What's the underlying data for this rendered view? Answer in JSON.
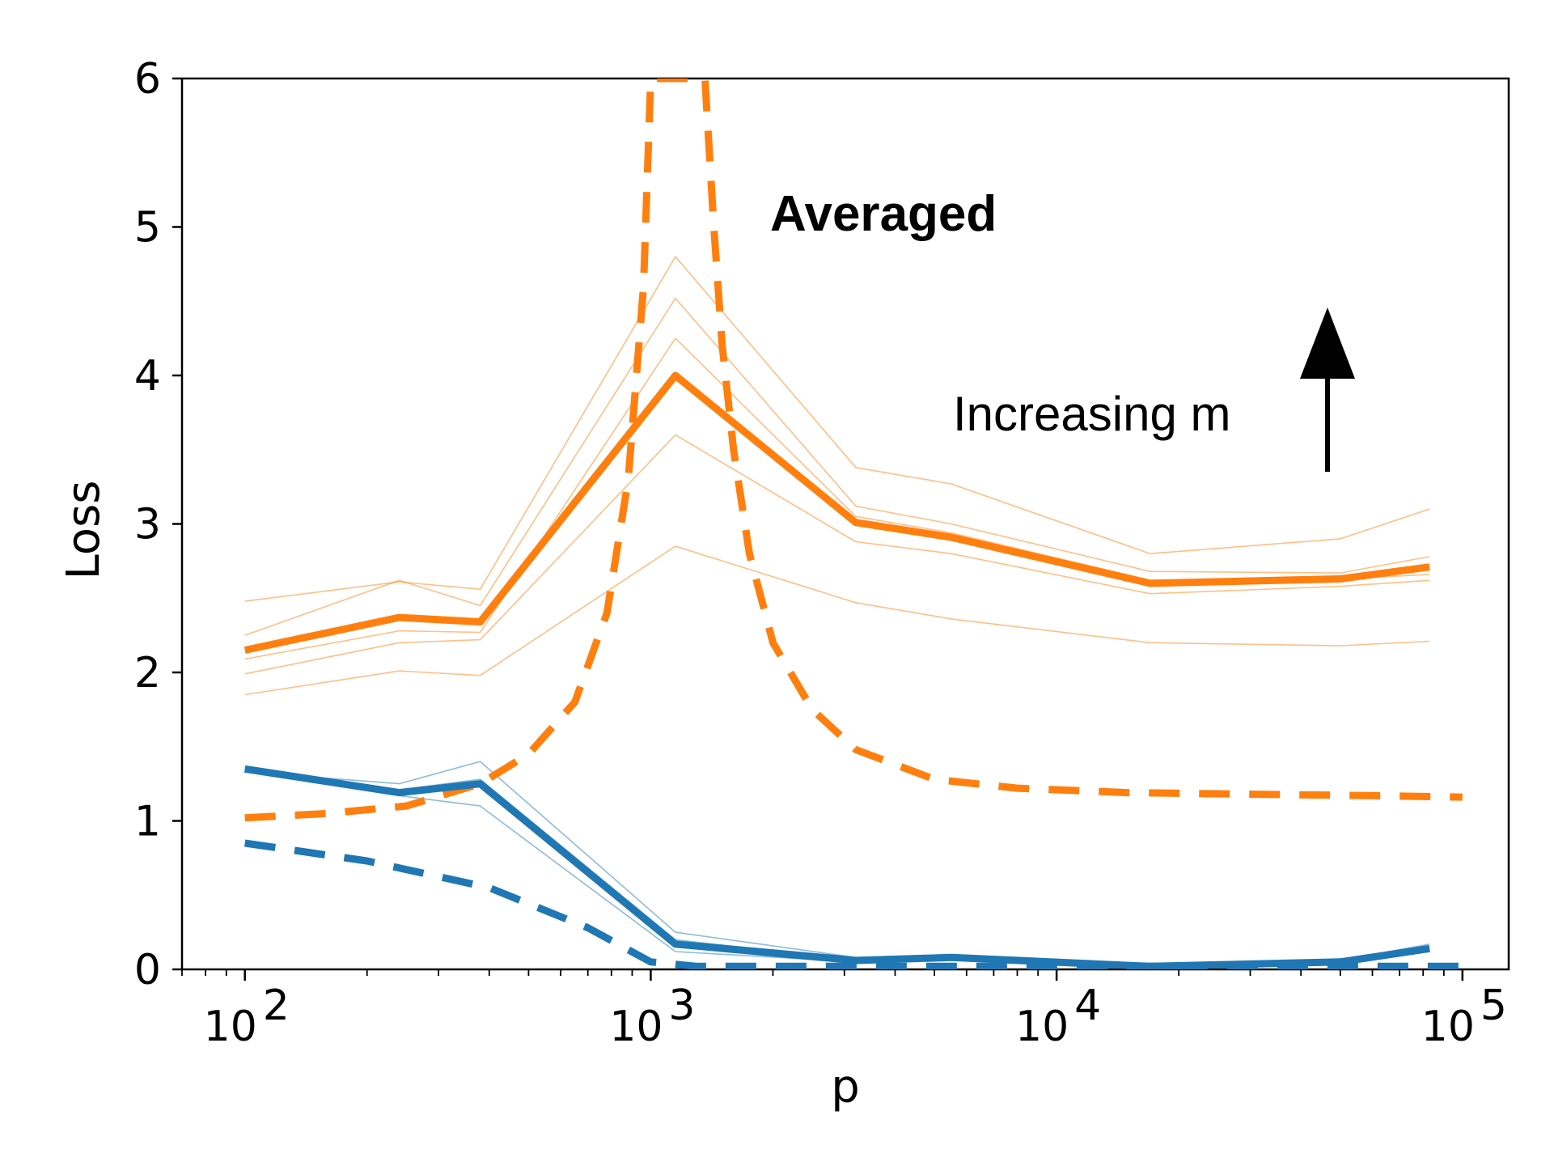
{
  "chart_data": {
    "type": "line",
    "title": "Averaged",
    "xlabel": "p",
    "ylabel": "Loss",
    "xscale": "log",
    "xlim": [
      70,
      130000
    ],
    "ylim": [
      0,
      6
    ],
    "grid": false,
    "x_ticks": [
      {
        "value": 100,
        "base": "10",
        "exp": "2"
      },
      {
        "value": 1000,
        "base": "10",
        "exp": "3"
      },
      {
        "value": 10000,
        "base": "10",
        "exp": "4"
      },
      {
        "value": 100000,
        "base": "10",
        "exp": "5"
      }
    ],
    "y_ticks": [
      0,
      1,
      2,
      3,
      4,
      5,
      6
    ],
    "annotation": {
      "text": "Increasing m",
      "arrow": "up"
    },
    "series": [
      {
        "name": "orange-thin-1",
        "color": "#ff7f0e",
        "style": "thin",
        "x": [
          100,
          240,
          380,
          1150,
          3200,
          5500,
          17000,
          50000,
          83000
        ],
        "y": [
          1.85,
          2.01,
          1.98,
          2.85,
          2.47,
          2.36,
          2.2,
          2.18,
          2.21
        ]
      },
      {
        "name": "orange-thin-2",
        "color": "#ff7f0e",
        "style": "thin",
        "x": [
          100,
          240,
          380,
          1150,
          3200,
          5500,
          17000,
          50000,
          83000
        ],
        "y": [
          1.99,
          2.2,
          2.22,
          3.6,
          2.88,
          2.8,
          2.53,
          2.58,
          2.62
        ]
      },
      {
        "name": "orange-thin-3",
        "color": "#ff7f0e",
        "style": "thin",
        "x": [
          100,
          240,
          380,
          1150,
          3200,
          5500,
          17000,
          50000,
          83000
        ],
        "y": [
          2.09,
          2.28,
          2.27,
          4.25,
          3.05,
          2.94,
          2.62,
          2.63,
          2.66
        ]
      },
      {
        "name": "orange-thin-4",
        "color": "#ff7f0e",
        "style": "thin",
        "x": [
          100,
          240,
          380,
          1150,
          3200,
          5500,
          17000,
          50000,
          83000
        ],
        "y": [
          2.25,
          2.62,
          2.45,
          4.52,
          3.12,
          3.0,
          2.68,
          2.67,
          2.78
        ]
      },
      {
        "name": "orange-thin-5",
        "color": "#ff7f0e",
        "style": "thin",
        "x": [
          100,
          240,
          380,
          1150,
          3200,
          5500,
          17000,
          50000,
          83000
        ],
        "y": [
          2.48,
          2.61,
          2.56,
          4.8,
          3.38,
          3.27,
          2.8,
          2.9,
          3.1
        ]
      },
      {
        "name": "orange-averaged",
        "color": "#ff7f0e",
        "style": "solid",
        "x": [
          100,
          240,
          380,
          1150,
          3200,
          5500,
          17000,
          50000,
          83000
        ],
        "y": [
          2.15,
          2.37,
          2.34,
          4.0,
          3.01,
          2.91,
          2.6,
          2.63,
          2.71
        ]
      },
      {
        "name": "orange-dashed",
        "color": "#ff7f0e",
        "style": "dashed",
        "x": [
          100,
          160,
          250,
          380,
          500,
          650,
          780,
          880,
          960,
          1000,
          1150,
          1360,
          1430,
          1500,
          1600,
          1750,
          2000,
          2500,
          3200,
          5000,
          8000,
          15000,
          30000,
          60000,
          100000
        ],
        "y": [
          1.02,
          1.05,
          1.1,
          1.25,
          1.45,
          1.8,
          2.4,
          3.3,
          4.6,
          6.0,
          6.0,
          6.0,
          5.0,
          4.2,
          3.5,
          2.8,
          2.2,
          1.75,
          1.48,
          1.28,
          1.22,
          1.19,
          1.18,
          1.17,
          1.16
        ]
      },
      {
        "name": "blue-thin-1",
        "color": "#1f77b4",
        "style": "thin",
        "x": [
          100,
          240,
          380,
          1150,
          3200,
          5500,
          17000,
          50000,
          83000
        ],
        "y": [
          1.33,
          1.25,
          1.4,
          0.25,
          0.08,
          0.1,
          0.03,
          0.06,
          0.17
        ]
      },
      {
        "name": "blue-thin-2",
        "color": "#1f77b4",
        "style": "thin",
        "x": [
          100,
          240,
          380,
          1150,
          3200,
          5500,
          17000,
          50000,
          83000
        ],
        "y": [
          1.36,
          1.21,
          1.28,
          0.2,
          0.06,
          0.09,
          0.02,
          0.05,
          0.15
        ]
      },
      {
        "name": "blue-thin-3",
        "color": "#1f77b4",
        "style": "thin",
        "x": [
          100,
          240,
          380,
          1150,
          3200,
          5500,
          17000,
          50000,
          83000
        ],
        "y": [
          1.34,
          1.17,
          1.1,
          0.12,
          0.05,
          0.07,
          0.02,
          0.04,
          0.12
        ]
      },
      {
        "name": "blue-averaged",
        "color": "#1f77b4",
        "style": "solid",
        "x": [
          100,
          240,
          380,
          1150,
          3200,
          5500,
          17000,
          50000,
          83000
        ],
        "y": [
          1.35,
          1.19,
          1.25,
          0.17,
          0.06,
          0.08,
          0.02,
          0.05,
          0.14
        ]
      },
      {
        "name": "blue-dashed",
        "color": "#1f77b4",
        "style": "dashed",
        "x": [
          100,
          200,
          400,
          700,
          1000,
          1300,
          2000,
          5000,
          20000,
          100000
        ],
        "y": [
          0.85,
          0.73,
          0.55,
          0.28,
          0.05,
          0.02,
          0.02,
          0.02,
          0.02,
          0.02
        ]
      }
    ]
  }
}
